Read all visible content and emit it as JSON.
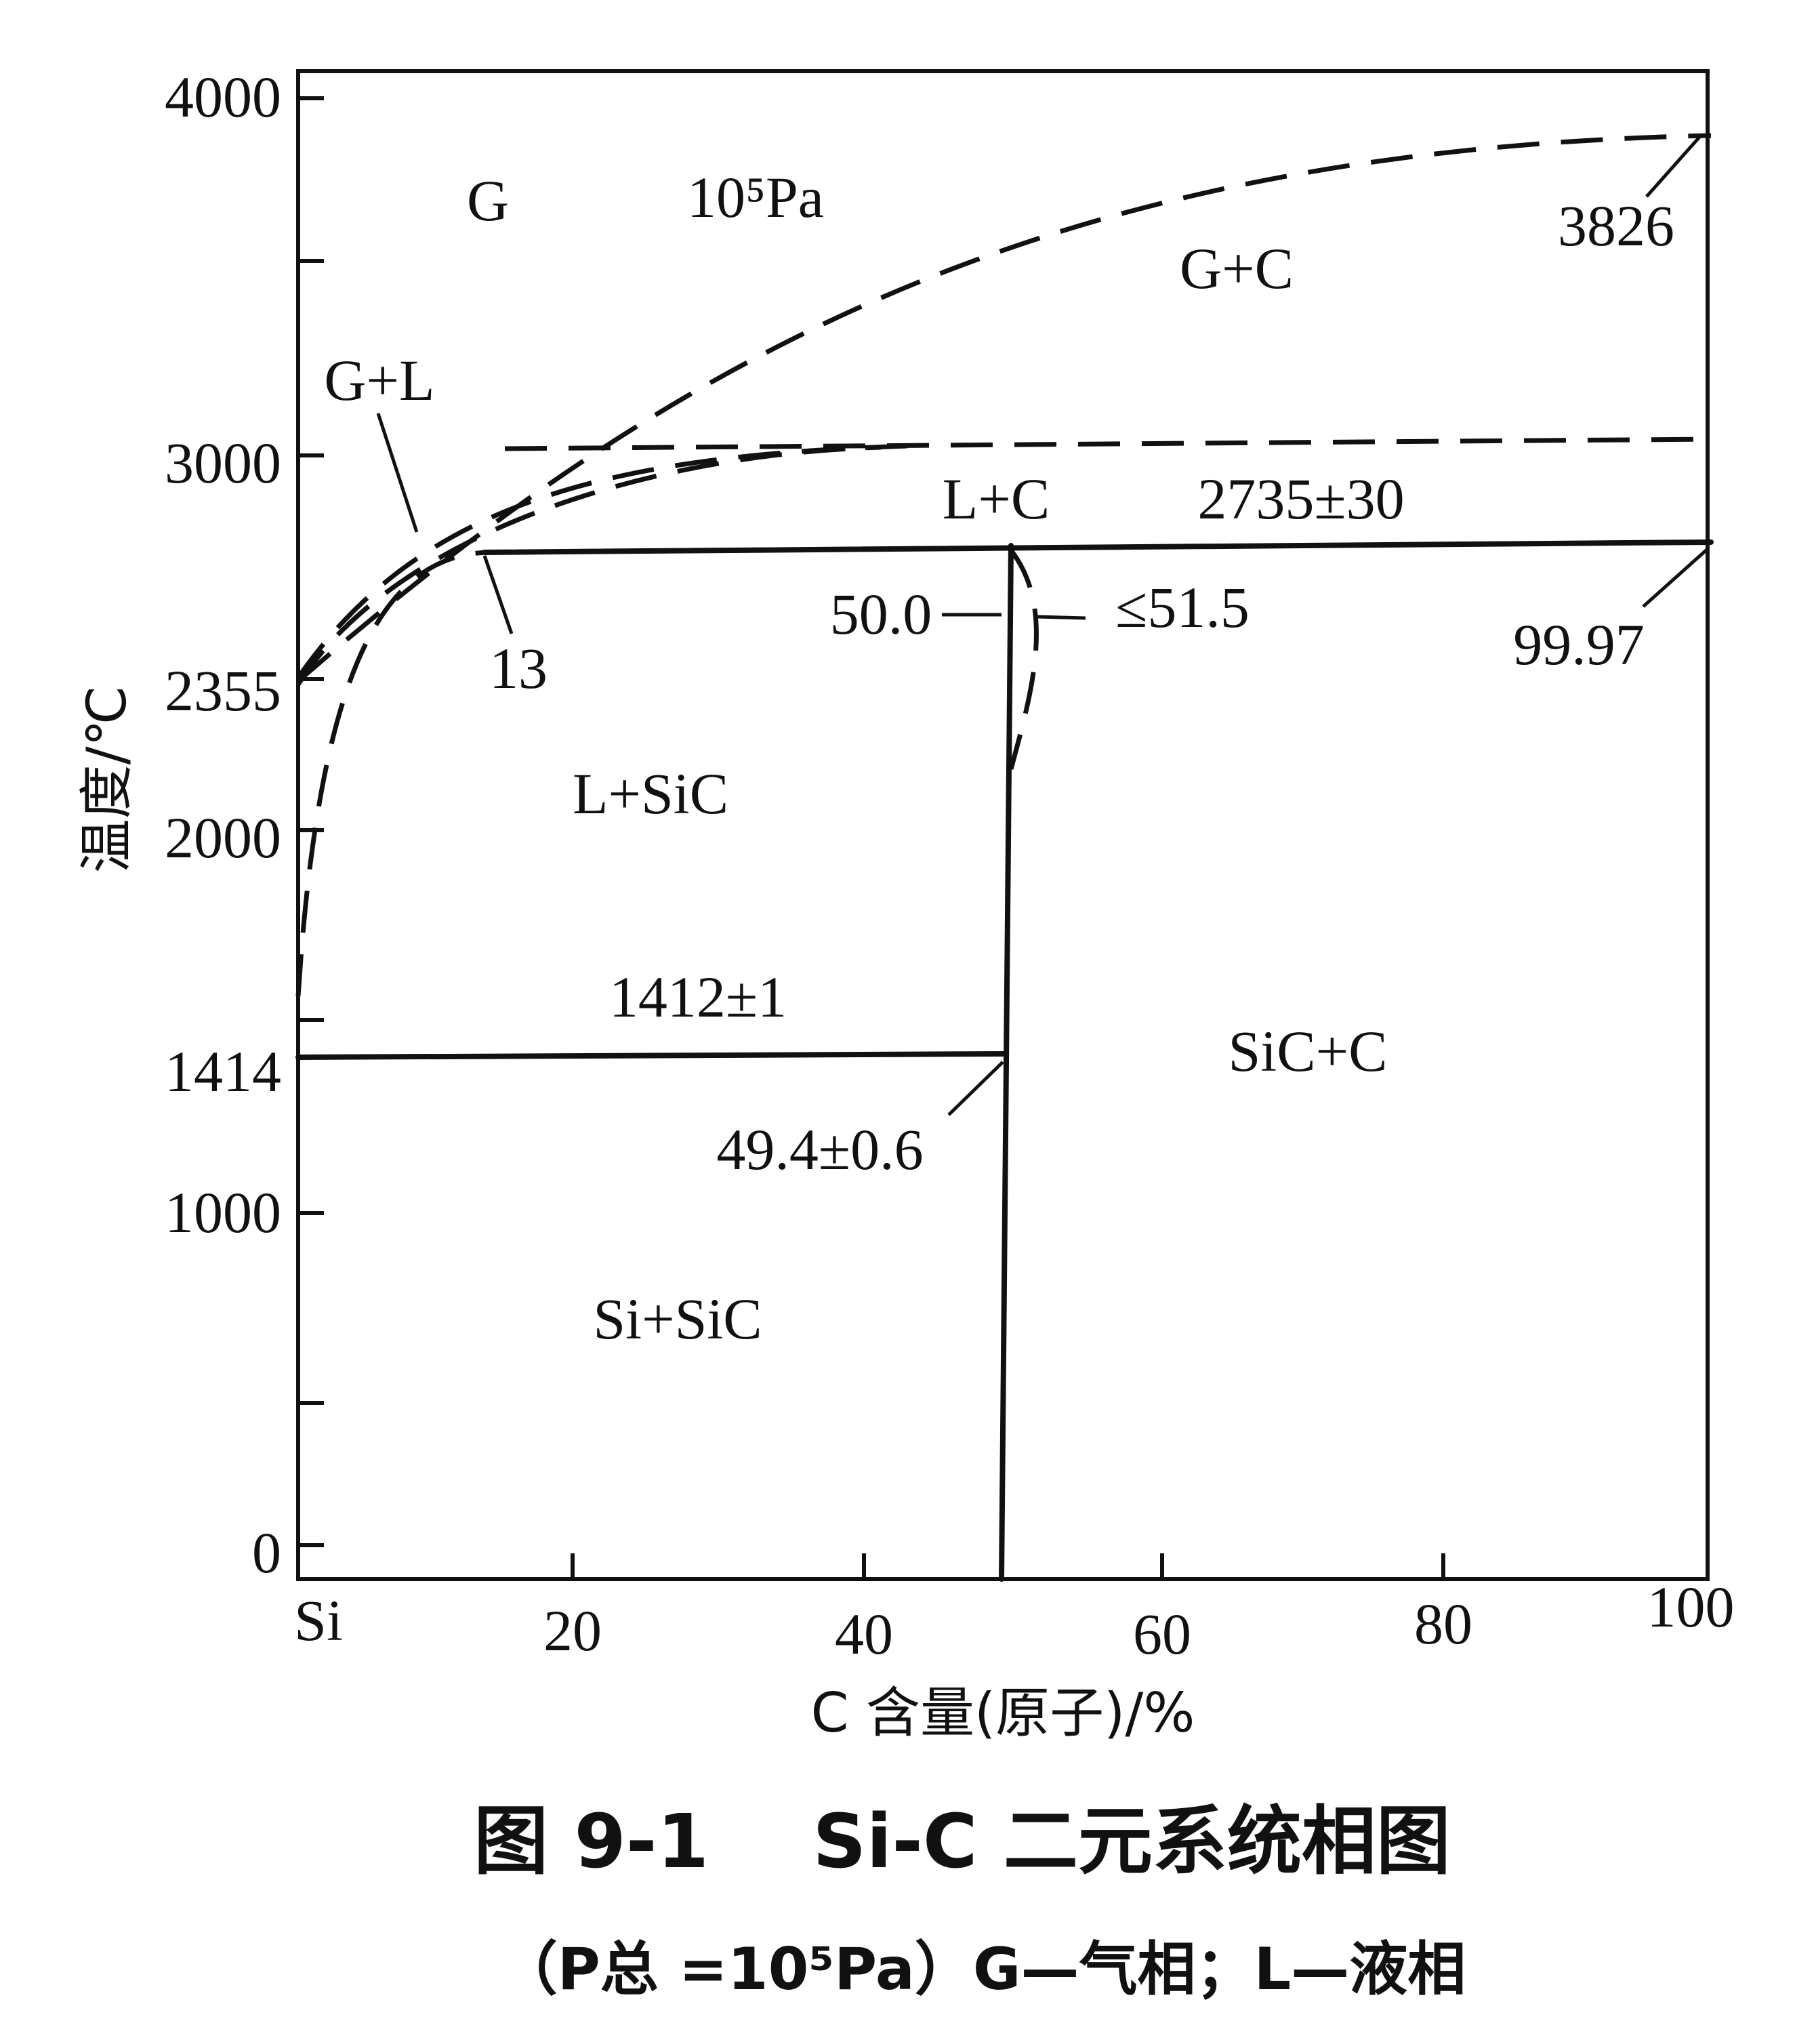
{
  "diagram": {
    "y_axis_label": "温度/℃",
    "x_axis_label": "C 含量(原子)/%",
    "y_ticks": [
      "4000",
      "3000",
      "2355",
      "2000",
      "1414",
      "1000",
      "0"
    ],
    "x_ticks": [
      "Si",
      "20",
      "40",
      "60",
      "80",
      "100"
    ],
    "regions": {
      "gas": "G",
      "gas_carbon": "G+C",
      "gas_liquid": "G+L",
      "liquid_carbon": "L+C",
      "liquid_sic": "L+SiC",
      "si_sic": "Si+SiC",
      "sic_c": "SiC+C"
    },
    "pressure_label": "10⁵Pa",
    "annotations": {
      "peak": "3826",
      "peritectic_temp": "2735±30",
      "liquid_comp": "13",
      "sic_comp": "50.0",
      "sic_max": "≤51.5",
      "carbon_comp": "99.97",
      "eutectic_temp": "1412±1",
      "eutectic_comp": "49.4±0.6"
    }
  },
  "caption": {
    "title": "图 9-1    Si-C 二元系统相图",
    "subtitle": "（P总 =10⁵Pa）G—气相；L—液相"
  }
}
